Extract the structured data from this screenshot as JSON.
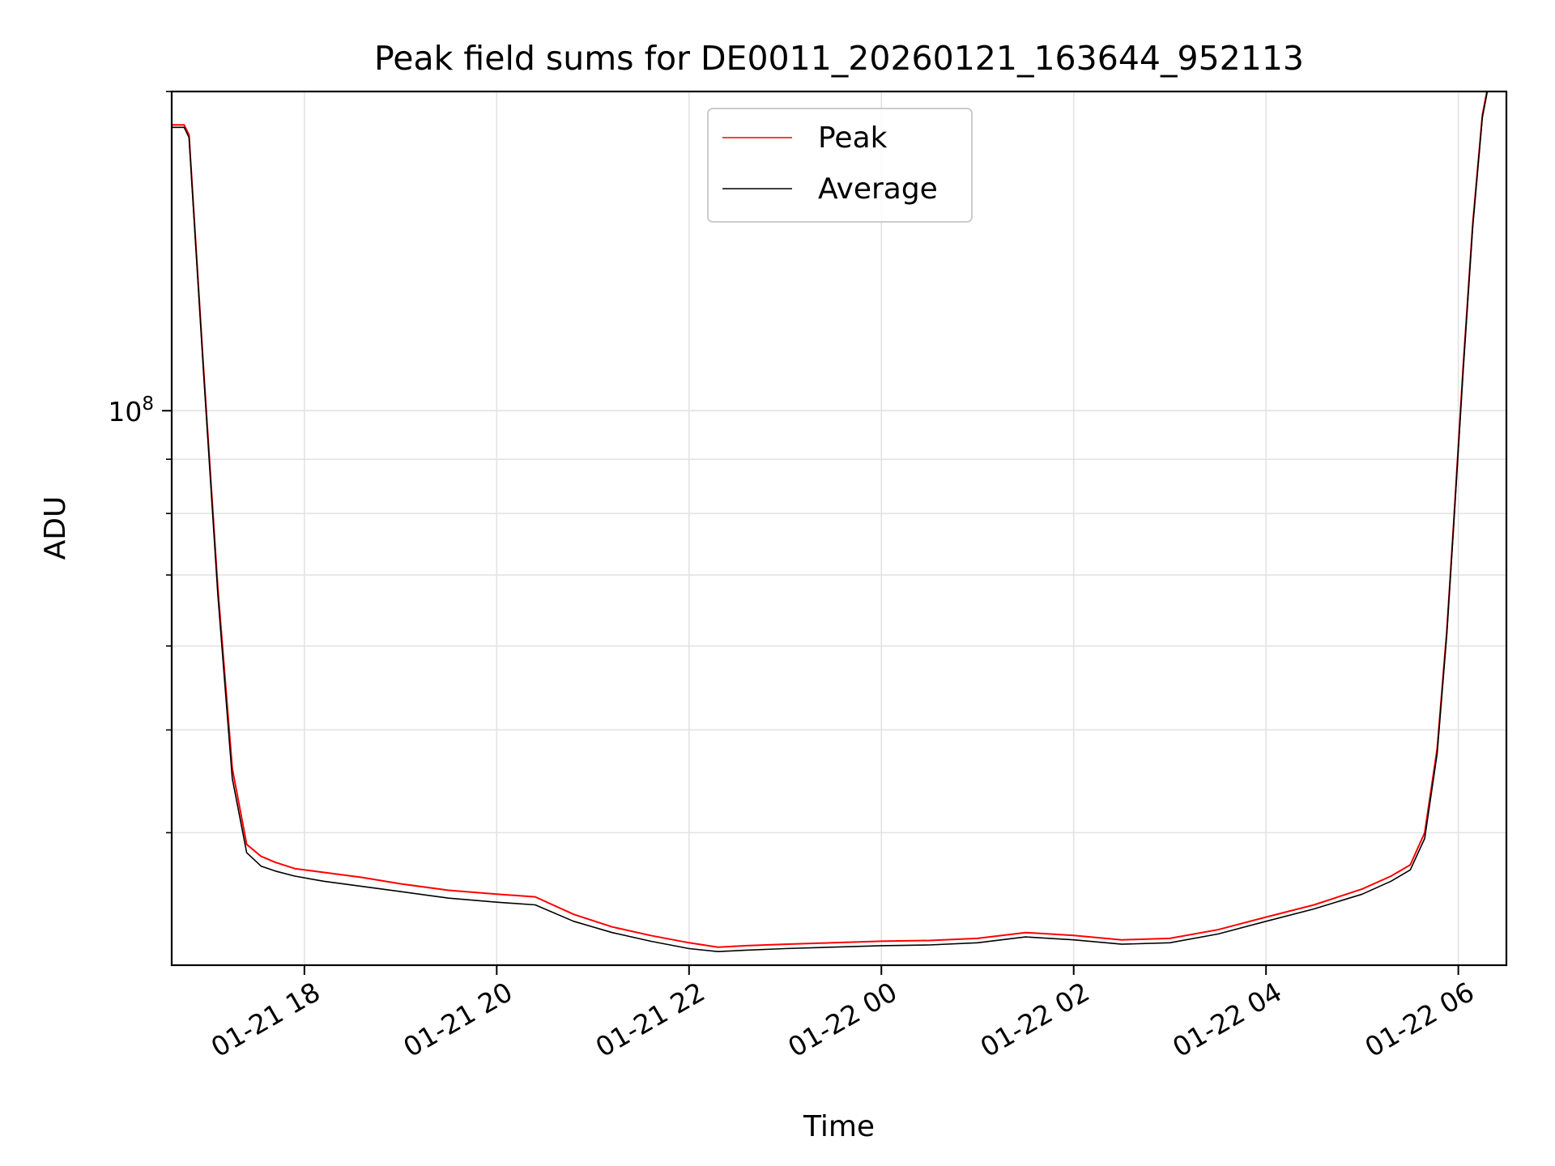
{
  "chart_data": {
    "type": "line",
    "title": "Peak field sums for DE0011_20260121_163644_952113",
    "xlabel": "Time",
    "ylabel": "ADU",
    "yscale": "log",
    "grid": true,
    "legend_position": "top-center",
    "x_unit": "hours since 01-21 00:00",
    "xlim": [
      16.62,
      30.5
    ],
    "ylim": [
      30000000,
      200000000
    ],
    "x_ticks": [
      {
        "value": 18,
        "label": "01-21 18"
      },
      {
        "value": 20,
        "label": "01-21 20"
      },
      {
        "value": 22,
        "label": "01-21 22"
      },
      {
        "value": 24,
        "label": "01-22 00"
      },
      {
        "value": 26,
        "label": "01-22 02"
      },
      {
        "value": 28,
        "label": "01-22 04"
      },
      {
        "value": 30,
        "label": "01-22 06"
      }
    ],
    "y_ticks": [
      {
        "value": 100000000,
        "base": "10",
        "exponent": "8"
      }
    ],
    "y_minor_ticks": [
      40000000,
      50000000,
      60000000,
      70000000,
      80000000,
      90000000,
      200000000
    ],
    "series": [
      {
        "name": "Peak",
        "color": "#ff0000",
        "x": [
          16.62,
          16.75,
          16.8,
          16.95,
          17.1,
          17.25,
          17.4,
          17.55,
          17.7,
          17.9,
          18.2,
          18.6,
          19.0,
          19.5,
          20.0,
          20.4,
          20.8,
          21.2,
          21.6,
          22.0,
          22.3,
          22.6,
          23.0,
          23.5,
          24.0,
          24.5,
          25.0,
          25.5,
          26.0,
          26.5,
          27.0,
          27.5,
          28.0,
          28.5,
          29.0,
          29.3,
          29.5,
          29.65,
          29.78,
          29.88,
          29.95,
          30.05,
          30.15,
          30.25,
          30.32
        ],
        "y": [
          186000000,
          186000000,
          182000000,
          110000000,
          68000000,
          46000000,
          39000000,
          38000000,
          37500000,
          37000000,
          36700000,
          36300000,
          35800000,
          35300000,
          35000000,
          34800000,
          33500000,
          32600000,
          32000000,
          31500000,
          31200000,
          31300000,
          31400000,
          31500000,
          31600000,
          31650000,
          31800000,
          32200000,
          32000000,
          31700000,
          31800000,
          32400000,
          33300000,
          34200000,
          35400000,
          36400000,
          37300000,
          40000000,
          48000000,
          62000000,
          78000000,
          110000000,
          150000000,
          190000000,
          205000000
        ]
      },
      {
        "name": "Average",
        "color": "#000000",
        "x": [
          16.62,
          16.75,
          16.8,
          16.95,
          17.1,
          17.25,
          17.4,
          17.55,
          17.7,
          17.9,
          18.2,
          18.6,
          19.0,
          19.5,
          20.0,
          20.4,
          20.8,
          21.2,
          21.6,
          22.0,
          22.3,
          22.6,
          23.0,
          23.5,
          24.0,
          24.5,
          25.0,
          25.5,
          26.0,
          26.5,
          27.0,
          27.5,
          28.0,
          28.5,
          29.0,
          29.3,
          29.5,
          29.65,
          29.78,
          29.88,
          29.95,
          30.05,
          30.15,
          30.25,
          30.32
        ],
        "y": [
          185000000,
          185000000,
          181000000,
          109000000,
          67000000,
          45000000,
          38300000,
          37200000,
          36800000,
          36400000,
          36000000,
          35600000,
          35200000,
          34700000,
          34400000,
          34200000,
          33000000,
          32200000,
          31600000,
          31100000,
          30900000,
          31000000,
          31100000,
          31200000,
          31300000,
          31350000,
          31500000,
          31900000,
          31700000,
          31400000,
          31500000,
          32100000,
          33000000,
          33900000,
          35000000,
          36000000,
          36900000,
          39500000,
          47500000,
          61500000,
          77500000,
          109000000,
          149000000,
          189000000,
          204000000
        ]
      }
    ]
  }
}
